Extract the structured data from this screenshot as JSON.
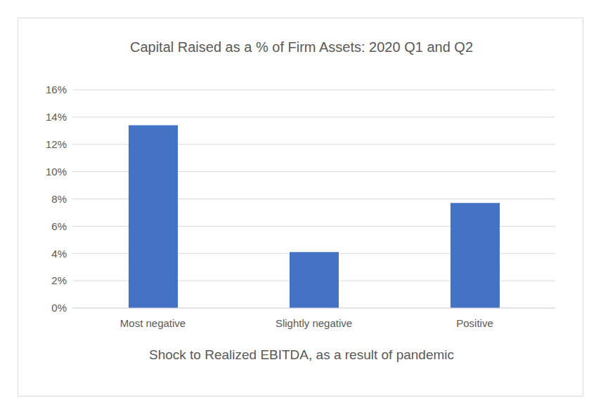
{
  "chart_data": {
    "type": "bar",
    "title": "Capital Raised as a % of Firm Assets: 2020 Q1 and Q2",
    "x_label": "Shock to Realized EBITDA, as a result of pandemic",
    "categories": [
      "Most negative",
      "Slightly negative",
      "Positive"
    ],
    "values": [
      13.4,
      4.1,
      7.7
    ],
    "color": "#4472c4",
    "ylim": [
      0,
      16
    ],
    "yticks": [
      {
        "value": 0,
        "label": "0%"
      },
      {
        "value": 2,
        "label": "2%"
      },
      {
        "value": 4,
        "label": "4%"
      },
      {
        "value": 6,
        "label": "6%"
      },
      {
        "value": 8,
        "label": "8%"
      },
      {
        "value": 10,
        "label": "10%"
      },
      {
        "value": 12,
        "label": "12%"
      },
      {
        "value": 14,
        "label": "14%"
      },
      {
        "value": 16,
        "label": "16%"
      }
    ],
    "grid": true
  }
}
